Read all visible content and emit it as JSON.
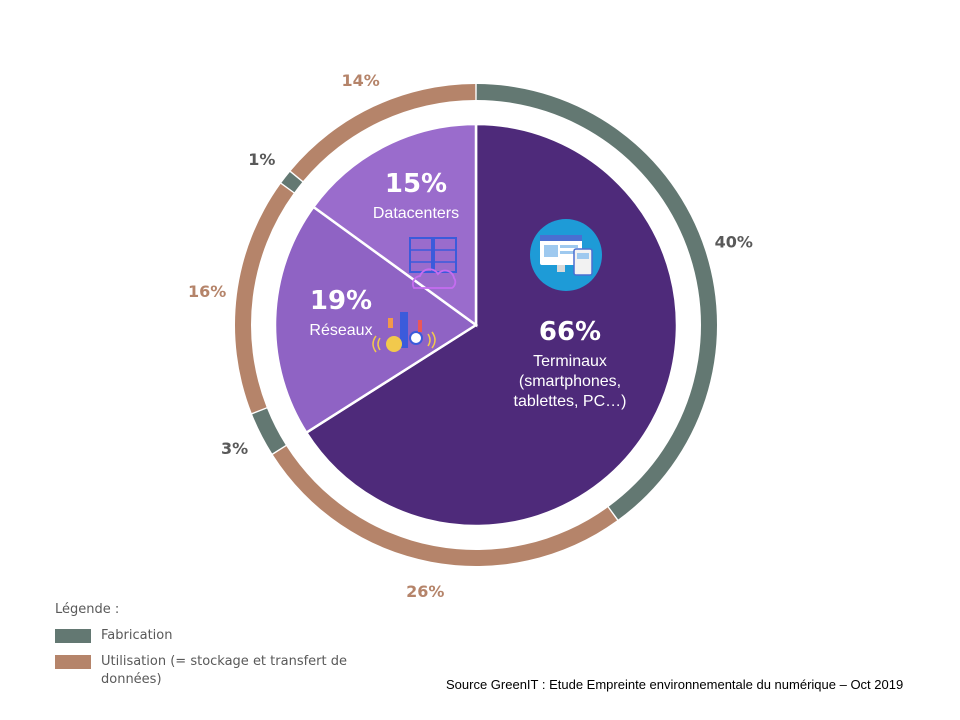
{
  "chart_data": {
    "type": "pie",
    "inner": {
      "slices": [
        {
          "label": "Terminaux",
          "sublabel": [
            "Terminaux",
            "(smartphones,",
            "tablettes, PC…)"
          ],
          "value": 66,
          "value_label": "66%",
          "color": "#4e2a7a",
          "icon": "devices-icon"
        },
        {
          "label": "Réseaux",
          "sublabel": [
            "Réseaux"
          ],
          "value": 19,
          "value_label": "19%",
          "color": "#8f63c4",
          "icon": "network-icon"
        },
        {
          "label": "Datacenters",
          "sublabel": [
            "Datacenters"
          ],
          "value": 15,
          "value_label": "15%",
          "color": "#9a6ccc",
          "icon": "datacenter-icon"
        }
      ]
    },
    "outer_ring": {
      "segments": [
        {
          "parent": "Terminaux",
          "type": "Fabrication",
          "value": 40,
          "label": "40%"
        },
        {
          "parent": "Terminaux",
          "type": "Utilisation",
          "value": 26,
          "label": "26%"
        },
        {
          "parent": "Réseaux",
          "type": "Fabrication",
          "value": 3,
          "label": "3%"
        },
        {
          "parent": "Réseaux",
          "type": "Utilisation",
          "value": 16,
          "label": "16%"
        },
        {
          "parent": "Datacenters",
          "type": "Fabrication",
          "value": 1,
          "label": "1%"
        },
        {
          "parent": "Datacenters",
          "type": "Utilisation",
          "value": 14,
          "label": "14%"
        }
      ]
    },
    "colors": {
      "Fabrication": "#637872",
      "Utilisation": "#b5846a"
    }
  },
  "legend": {
    "title": "Légende :",
    "items": [
      {
        "type": "Fabrication",
        "label": "Fabrication"
      },
      {
        "type": "Utilisation",
        "label": "Utilisation (= stockage et transfert de données)"
      }
    ]
  },
  "source": "Source GreenIT  : Etude Empreinte environnementale du numérique – Oct 2019"
}
